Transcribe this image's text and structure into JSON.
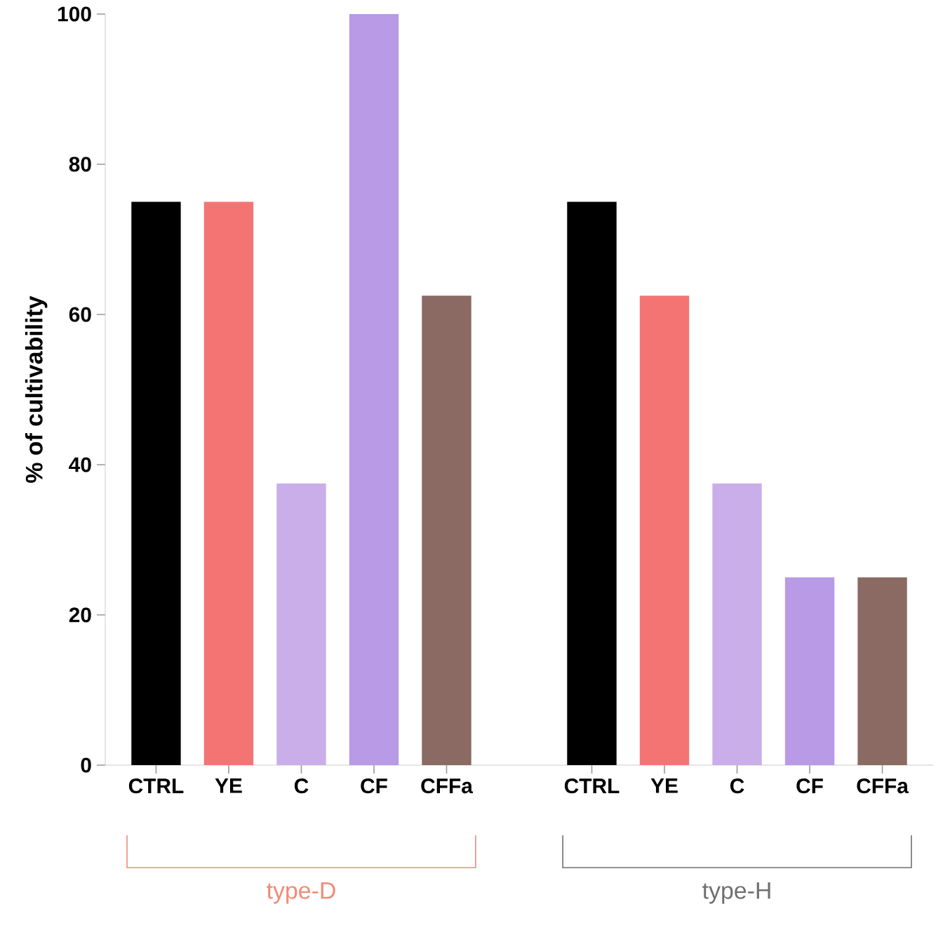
{
  "chart_data": {
    "type": "bar",
    "ylabel": "% of cultivability",
    "categories": [
      "CTRL",
      "YE",
      "C",
      "CF",
      "CFFa",
      null,
      "CTRL",
      "YE",
      "C",
      "CF",
      "CFFa"
    ],
    "values": [
      75,
      75,
      37.5,
      100,
      62.5,
      null,
      75,
      62.5,
      37.5,
      25,
      25
    ],
    "colors": [
      "#000000",
      "#f47474",
      "#c9aee9",
      "#b89ae6",
      "#8a6a62",
      null,
      "#000000",
      "#f47474",
      "#c9aee9",
      "#b89ae6",
      "#8a6a62"
    ],
    "ylim": [
      0,
      100
    ],
    "yticks": [
      0,
      20,
      40,
      60,
      80,
      100
    ],
    "annotations": [
      "type-D",
      "type-H"
    ]
  }
}
